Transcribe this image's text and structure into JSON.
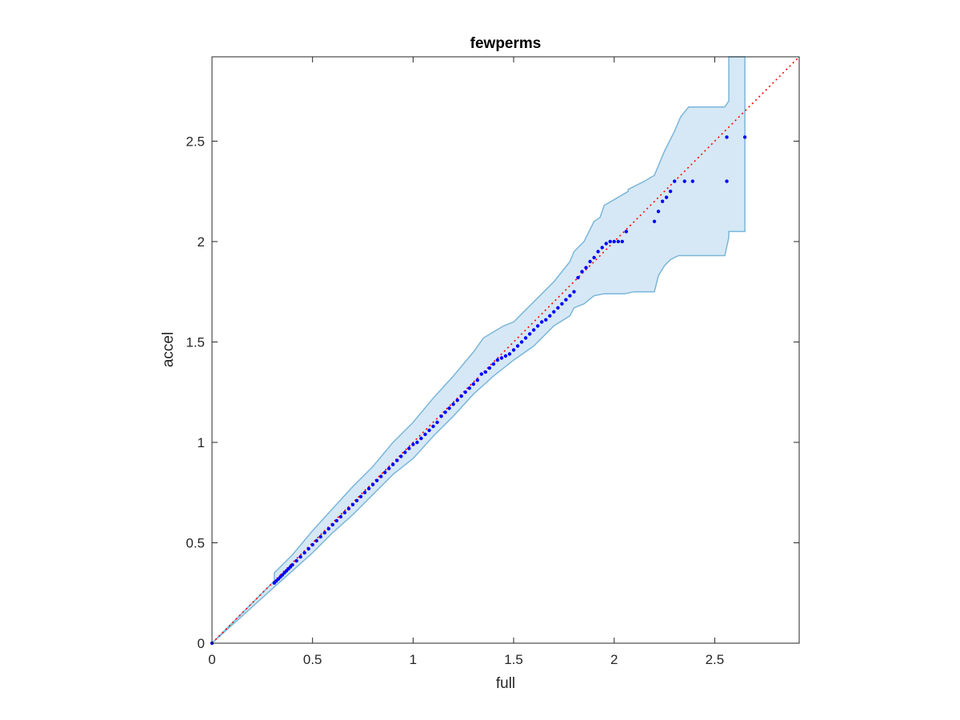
{
  "chart_data": {
    "type": "scatter",
    "title": "fewperms",
    "xlabel": "full",
    "ylabel": "accel",
    "xlim": [
      0,
      2.92
    ],
    "ylim": [
      0,
      2.92
    ],
    "xticks": [
      0,
      0.5,
      1,
      1.5,
      2,
      2.5
    ],
    "yticks": [
      0,
      0.5,
      1,
      1.5,
      2,
      2.5
    ],
    "xtick_labels": [
      "0",
      "0.5",
      "1",
      "1.5",
      "2",
      "2.5"
    ],
    "ytick_labels": [
      "0",
      "0.5",
      "1",
      "1.5",
      "2",
      "2.5"
    ],
    "grid": false,
    "colors": {
      "points": "#0000ff",
      "reference": "#ff0000",
      "band_fill": "#d6e8f5",
      "band_edge": "#7ab6da",
      "axes": "#262626"
    },
    "reference_line": {
      "x": [
        0,
        2.92
      ],
      "y": [
        0,
        2.92
      ],
      "style": "dotted"
    },
    "band_upper": {
      "x": [
        0,
        0.31,
        0.31,
        0.4,
        0.5,
        0.6,
        0.7,
        0.8,
        0.9,
        1.0,
        1.1,
        1.2,
        1.3,
        1.35,
        1.4,
        1.45,
        1.5,
        1.55,
        1.6,
        1.7,
        1.78,
        1.8,
        1.85,
        1.9,
        1.93,
        1.95,
        2.07,
        2.07,
        2.15,
        2.2,
        2.25,
        2.3,
        2.33,
        2.37,
        2.55,
        2.57,
        2.57,
        2.65
      ],
      "y": [
        0,
        0.31,
        0.35,
        0.44,
        0.56,
        0.67,
        0.78,
        0.88,
        1.0,
        1.1,
        1.22,
        1.33,
        1.45,
        1.52,
        1.55,
        1.58,
        1.6,
        1.65,
        1.7,
        1.8,
        1.9,
        1.95,
        2.0,
        2.1,
        2.12,
        2.18,
        2.25,
        2.26,
        2.3,
        2.33,
        2.45,
        2.55,
        2.62,
        2.67,
        2.67,
        2.7,
        2.92,
        2.92
      ]
    },
    "band_lower": {
      "x": [
        0,
        0.31,
        0.4,
        0.5,
        0.6,
        0.7,
        0.8,
        0.9,
        1.0,
        1.1,
        1.2,
        1.3,
        1.4,
        1.5,
        1.6,
        1.7,
        1.78,
        1.8,
        1.85,
        1.9,
        1.95,
        2.0,
        2.05,
        2.1,
        2.2,
        2.22,
        2.25,
        2.28,
        2.32,
        2.55,
        2.57,
        2.57,
        2.65
      ],
      "y": [
        0,
        0.28,
        0.36,
        0.45,
        0.55,
        0.64,
        0.74,
        0.84,
        0.92,
        1.03,
        1.13,
        1.24,
        1.33,
        1.41,
        1.48,
        1.58,
        1.63,
        1.67,
        1.69,
        1.73,
        1.74,
        1.74,
        1.74,
        1.75,
        1.75,
        1.83,
        1.88,
        1.91,
        1.93,
        1.93,
        2.02,
        2.05,
        2.05
      ]
    },
    "series": [
      {
        "x": [
          0.0,
          0.31,
          0.32,
          0.33,
          0.34,
          0.35,
          0.36,
          0.37,
          0.38,
          0.39,
          0.4,
          0.42,
          0.44,
          0.46,
          0.48,
          0.5,
          0.52,
          0.54,
          0.56,
          0.58,
          0.6,
          0.62,
          0.64,
          0.66,
          0.68,
          0.7,
          0.72,
          0.74,
          0.76,
          0.78,
          0.8,
          0.82,
          0.84,
          0.86,
          0.88,
          0.9,
          0.92,
          0.94,
          0.96,
          0.98,
          1.0,
          1.02,
          1.04,
          1.06,
          1.08,
          1.1,
          1.12,
          1.14,
          1.16,
          1.18,
          1.2,
          1.22,
          1.24,
          1.26,
          1.28,
          1.3,
          1.32,
          1.34,
          1.36,
          1.38,
          1.4,
          1.42,
          1.44,
          1.46,
          1.48,
          1.5,
          1.52,
          1.54,
          1.56,
          1.58,
          1.6,
          1.62,
          1.64,
          1.66,
          1.68,
          1.7,
          1.72,
          1.74,
          1.76,
          1.78,
          1.8,
          1.82,
          1.84,
          1.86,
          1.88,
          1.9,
          1.92,
          1.94,
          1.96,
          1.98,
          2.0,
          2.02,
          2.04,
          2.06,
          2.2,
          2.22,
          2.24,
          2.26,
          2.28,
          2.3,
          2.35,
          2.39,
          2.56,
          2.56,
          2.65
        ],
        "y": [
          0.0,
          0.3,
          0.31,
          0.32,
          0.33,
          0.34,
          0.35,
          0.36,
          0.37,
          0.38,
          0.39,
          0.41,
          0.43,
          0.45,
          0.47,
          0.49,
          0.51,
          0.53,
          0.55,
          0.57,
          0.59,
          0.61,
          0.63,
          0.65,
          0.67,
          0.69,
          0.71,
          0.73,
          0.75,
          0.77,
          0.79,
          0.81,
          0.83,
          0.85,
          0.87,
          0.89,
          0.91,
          0.93,
          0.95,
          0.97,
          0.99,
          1.0,
          1.02,
          1.04,
          1.06,
          1.08,
          1.1,
          1.13,
          1.15,
          1.17,
          1.19,
          1.21,
          1.23,
          1.25,
          1.27,
          1.29,
          1.31,
          1.34,
          1.35,
          1.37,
          1.39,
          1.41,
          1.42,
          1.43,
          1.44,
          1.46,
          1.48,
          1.5,
          1.52,
          1.54,
          1.56,
          1.58,
          1.6,
          1.61,
          1.63,
          1.65,
          1.67,
          1.69,
          1.71,
          1.73,
          1.75,
          1.82,
          1.85,
          1.87,
          1.9,
          1.92,
          1.95,
          1.97,
          1.99,
          2.0,
          2.0,
          2.0,
          2.0,
          2.05,
          2.1,
          2.15,
          2.2,
          2.22,
          2.25,
          2.3,
          2.3,
          2.3,
          2.3,
          2.52,
          2.52
        ]
      }
    ]
  }
}
